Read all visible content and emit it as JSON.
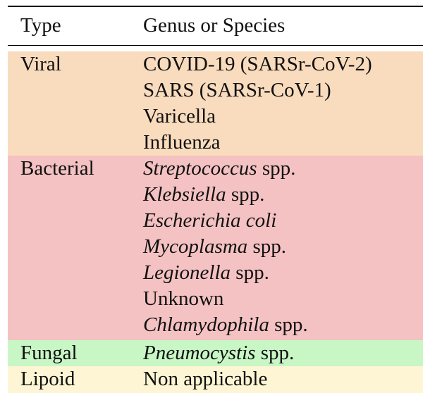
{
  "header": {
    "type": "Type",
    "genus": "Genus or Species"
  },
  "colors": {
    "viral": "#f9dbbd",
    "bacterial": "#f4c2c2",
    "fungal": "#c8f7c5",
    "lipoid": "#fdf5d4"
  },
  "groups": [
    {
      "type": "Viral",
      "items": [
        {
          "italic": "",
          "rest": "COVID-19 (SARSr-CoV-2)"
        },
        {
          "italic": "",
          "rest": "SARS (SARSr-CoV-1)"
        },
        {
          "italic": "",
          "rest": "Varicella"
        },
        {
          "italic": "",
          "rest": "Influenza"
        }
      ]
    },
    {
      "type": "Bacterial",
      "items": [
        {
          "italic": "Streptococcus",
          "rest": " spp."
        },
        {
          "italic": "Klebsiella",
          "rest": " spp."
        },
        {
          "italic": "Escherichia coli",
          "rest": ""
        },
        {
          "italic": "Mycoplasma",
          "rest": " spp."
        },
        {
          "italic": "Legionella",
          "rest": " spp."
        },
        {
          "italic": "",
          "rest": "Unknown"
        },
        {
          "italic": "Chlamydophila",
          "rest": " spp."
        }
      ]
    },
    {
      "type": "Fungal",
      "items": [
        {
          "italic": "Pneumocystis",
          "rest": " spp."
        }
      ]
    },
    {
      "type": "Lipoid",
      "items": [
        {
          "italic": "",
          "rest": "Non applicable"
        }
      ]
    }
  ]
}
